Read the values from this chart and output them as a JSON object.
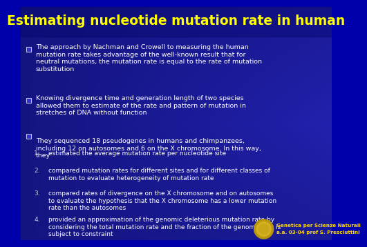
{
  "title": "Estimating nucleotide mutation rate in human",
  "title_color": "#FFFF00",
  "title_fontsize": 13.5,
  "text_color": "#ffffff",
  "number_color": "#cccccc",
  "footer_color": "#FFD700",
  "footer_text1": "Genetica per Scienze Naturali",
  "footer_text2": "a.a. 03-04 prof S. Presciuttini",
  "bullets": [
    "The approach by Nachman and Crowell to measuring the human\nmutation rate takes advantage of the well-known result that for\nneutral mutations, the mutation rate is equal to the rate of mutation\nsubstitution",
    "Knowing divergence time and generation length of two species\nallowed them to estimate of the rate and pattern of mutation in\nstretches of DNA without function",
    "They sequenced 18 pseudogenes in humans and chimpanzees,\nincluding 12 on autosomes and 6 on the X chromosome. In this way,\nthey"
  ],
  "numbered": [
    "estimated the average mutation rate per nucleotide site",
    "compared mutation rates for different sites and for different classes of\nmutation to evaluate heterogeneity of mutation rate",
    "compared rates of divergence on the X chromosome and on autosomes\nto evaluate the hypothesis that the X chromosome has a lower mutation\nrate than the autosomes",
    "provided an approximation of the genomic deleterious mutation rate by\nconsidering the total mutation rate and the fraction of the genome that is\nsubject to constraint"
  ]
}
